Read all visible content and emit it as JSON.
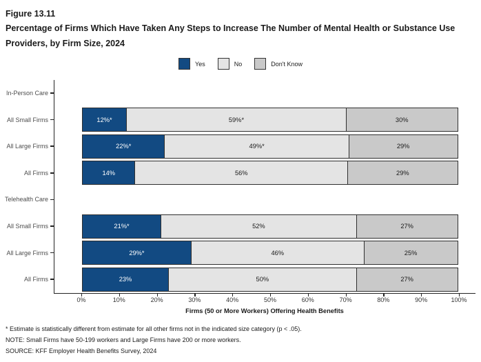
{
  "figure": {
    "number": "Figure 13.11",
    "title": "Percentage of Firms Which Have Taken Any Steps to Increase The Number of Mental Health or Substance Use Providers, by Firm Size, 2024"
  },
  "chart_data": {
    "type": "bar",
    "orientation": "horizontal",
    "stacked": true,
    "title": "Percentage of Firms Which Have Taken Any Steps to Increase The Number of Mental Health or Substance Use Providers, by Firm Size, 2024",
    "xlabel": "Firms (50 or More Workers) Offering Health Benefits",
    "xlim": [
      0,
      100
    ],
    "x_ticks": [
      "0%",
      "10%",
      "20%",
      "30%",
      "40%",
      "50%",
      "60%",
      "70%",
      "80%",
      "90%",
      "100%"
    ],
    "grid": false,
    "legend_position": "top-center",
    "series_keys": [
      "Yes",
      "No",
      "Don't Know"
    ],
    "colors": {
      "Yes": "#124A82",
      "No": "#E4E4E4",
      "Don't Know": "#C9C9C9"
    },
    "label_colors": {
      "Yes": "#FFFFFF",
      "No": "#1A1A1A",
      "Don't Know": "#1A1A1A"
    },
    "rows": [
      {
        "kind": "header",
        "label": "In-Person Care"
      },
      {
        "kind": "bar",
        "label": "All Small Firms",
        "values": [
          12,
          59,
          30
        ],
        "value_labels": [
          "12%*",
          "59%*",
          "30%"
        ]
      },
      {
        "kind": "bar",
        "label": "All Large Firms",
        "values": [
          22,
          49,
          29
        ],
        "value_labels": [
          "22%*",
          "49%*",
          "29%"
        ]
      },
      {
        "kind": "bar",
        "label": "All Firms",
        "values": [
          14,
          56,
          29
        ],
        "value_labels": [
          "14%",
          "56%",
          "29%"
        ]
      },
      {
        "kind": "header",
        "label": "Telehealth Care"
      },
      {
        "kind": "bar",
        "label": "All Small Firms",
        "values": [
          21,
          52,
          27
        ],
        "value_labels": [
          "21%*",
          "52%",
          "27%"
        ]
      },
      {
        "kind": "bar",
        "label": "All Large Firms",
        "values": [
          29,
          46,
          25
        ],
        "value_labels": [
          "29%*",
          "46%",
          "25%"
        ]
      },
      {
        "kind": "bar",
        "label": "All Firms",
        "values": [
          23,
          50,
          27
        ],
        "value_labels": [
          "23%",
          "50%",
          "27%"
        ]
      }
    ]
  },
  "footnotes": [
    "* Estimate is statistically different from estimate for all other firms not in the indicated size category (p < .05).",
    "NOTE: Small Firms have 50-199 workers and Large Firms have 200 or more workers.",
    "SOURCE: KFF Employer Health Benefits Survey, 2024"
  ]
}
